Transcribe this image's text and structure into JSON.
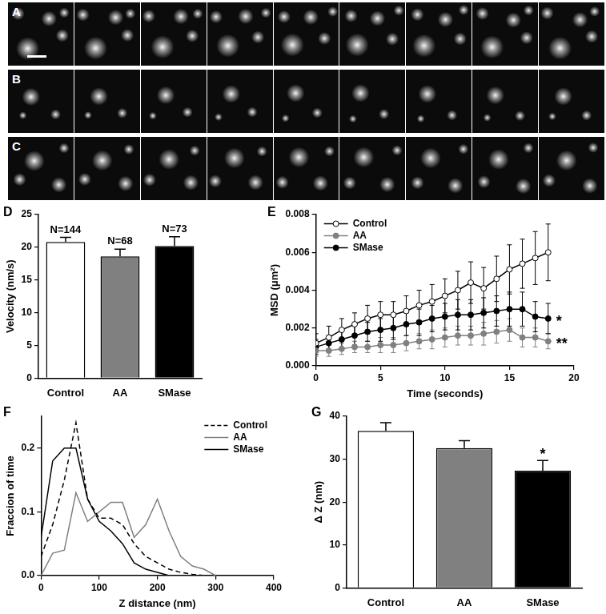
{
  "image_strips": [
    {
      "label": "A",
      "frames": 9
    },
    {
      "label": "B",
      "frames": 9
    },
    {
      "label": "C",
      "frames": 9
    }
  ],
  "chart_data": [
    {
      "type": "bar",
      "title": "D",
      "categories": [
        "Control",
        "AA",
        "SMase"
      ],
      "values": [
        20.8,
        18.6,
        20.2
      ],
      "errors": [
        0.7,
        1.1,
        1.4
      ],
      "colors": [
        "#ffffff",
        "#808080",
        "#000000"
      ],
      "y_label": "Velocity (nm/s)",
      "ylim": [
        0,
        25
      ],
      "yticks": [
        0,
        5,
        10,
        15,
        20,
        25
      ],
      "grid": false,
      "annotations": [
        {
          "category": "Control",
          "text": "N=144"
        },
        {
          "category": "AA",
          "text": "N=68"
        },
        {
          "category": "SMase",
          "text": "N=73"
        }
      ]
    },
    {
      "type": "line",
      "title": "E",
      "x_label": "Time (seconds)",
      "y_label": "MSD (μm²)",
      "x": [
        0,
        1,
        2,
        3,
        4,
        5,
        6,
        7,
        8,
        9,
        10,
        11,
        12,
        13,
        14,
        15,
        16,
        17,
        18
      ],
      "series": [
        {
          "name": "Control",
          "color": "#000000",
          "marker": "open_circle",
          "values": [
            0.0012,
            0.0015,
            0.0019,
            0.0022,
            0.0025,
            0.0027,
            0.0027,
            0.0029,
            0.0032,
            0.0034,
            0.0037,
            0.004,
            0.0044,
            0.0041,
            0.0046,
            0.0051,
            0.0054,
            0.0057,
            0.006
          ],
          "errors": [
            0.0005,
            0.0006,
            0.0006,
            0.0006,
            0.0007,
            0.0007,
            0.0007,
            0.0008,
            0.0008,
            0.0009,
            0.0009,
            0.001,
            0.0011,
            0.0011,
            0.0012,
            0.0013,
            0.0013,
            0.0014,
            0.0015
          ]
        },
        {
          "name": "AA",
          "color": "#808080",
          "marker": "circle",
          "values": [
            0.0008,
            0.0008,
            0.0009,
            0.001,
            0.001,
            0.0011,
            0.0011,
            0.0012,
            0.0013,
            0.0014,
            0.0015,
            0.0016,
            0.0016,
            0.0017,
            0.0018,
            0.0019,
            0.0015,
            0.0015,
            0.0013
          ],
          "errors": [
            0.0003,
            0.0003,
            0.0003,
            0.0003,
            0.0003,
            0.0004,
            0.0004,
            0.0004,
            0.0004,
            0.0005,
            0.0005,
            0.0005,
            0.0005,
            0.0006,
            0.0006,
            0.0006,
            0.0005,
            0.0005,
            0.0004
          ]
        },
        {
          "name": "SMase",
          "color": "#000000",
          "marker": "circle",
          "values": [
            0.001,
            0.0012,
            0.0014,
            0.0016,
            0.0018,
            0.0019,
            0.002,
            0.0022,
            0.0023,
            0.0025,
            0.0026,
            0.0027,
            0.0027,
            0.0028,
            0.0029,
            0.003,
            0.003,
            0.0026,
            0.0025
          ],
          "errors": [
            0.0004,
            0.0004,
            0.0005,
            0.0005,
            0.0005,
            0.0006,
            0.0006,
            0.0006,
            0.0007,
            0.0007,
            0.0007,
            0.0008,
            0.0008,
            0.0008,
            0.0008,
            0.0009,
            0.0009,
            0.0008,
            0.0008
          ]
        }
      ],
      "xlim": [
        0,
        20
      ],
      "xticks": [
        0,
        5,
        10,
        15,
        20
      ],
      "ylim": [
        0,
        0.008
      ],
      "yticks": [
        {
          "value": 0,
          "label": "0.000"
        },
        {
          "value": 0.002,
          "label": "0.002"
        },
        {
          "value": 0.004,
          "label": "0.004"
        },
        {
          "value": 0.006,
          "label": "0.006"
        },
        {
          "value": 0.008,
          "label": "0.008"
        }
      ],
      "grid": false,
      "legend": "upper left",
      "annotations": [
        {
          "series": "SMase",
          "text": "*"
        },
        {
          "series": "AA",
          "text": "**"
        }
      ]
    },
    {
      "type": "line",
      "title": "F",
      "x_label": "Z distance (nm)",
      "y_label": "Fraccion of time",
      "x": [
        0,
        20,
        40,
        60,
        80,
        100,
        120,
        140,
        160,
        180,
        200,
        220,
        240,
        260,
        280,
        300
      ],
      "series": [
        {
          "name": "Control",
          "color": "#000000",
          "line_style": "dashed",
          "values": [
            0.03,
            0.08,
            0.15,
            0.24,
            0.12,
            0.09,
            0.09,
            0.08,
            0.05,
            0.03,
            0.02,
            0.01,
            0.005,
            0.002,
            0,
            0
          ]
        },
        {
          "name": "AA",
          "color": "#808080",
          "line_style": "solid",
          "values": [
            0,
            0.035,
            0.04,
            0.13,
            0.085,
            0.1,
            0.115,
            0.115,
            0.06,
            0.08,
            0.12,
            0.07,
            0.03,
            0.015,
            0.01,
            0
          ]
        },
        {
          "name": "SMase",
          "color": "#000000",
          "line_style": "solid",
          "values": [
            0.06,
            0.18,
            0.2,
            0.2,
            0.12,
            0.085,
            0.07,
            0.05,
            0.02,
            0.01,
            0.005,
            0,
            0,
            0,
            0,
            0
          ]
        }
      ],
      "xlim": [
        0,
        400
      ],
      "xticks": [
        0,
        100,
        200,
        300,
        400
      ],
      "ylim": [
        0,
        0.25
      ],
      "yticks": [
        {
          "value": 0,
          "label": "0.0"
        },
        0.1,
        0.2
      ],
      "grid": false,
      "legend": "upper right"
    },
    {
      "type": "bar",
      "title": "G",
      "categories": [
        "Control",
        "AA",
        "SMase"
      ],
      "values": [
        36.6,
        32.6,
        27.3
      ],
      "errors": [
        1.9,
        1.7,
        2.4
      ],
      "colors": [
        "#ffffff",
        "#808080",
        "#000000"
      ],
      "y_label": "Δ Z (nm)",
      "ylim": [
        0,
        40
      ],
      "yticks": [
        0,
        10,
        20,
        30,
        40
      ],
      "grid": false,
      "annotations": [
        {
          "category": "SMase",
          "text": "*"
        }
      ]
    }
  ]
}
